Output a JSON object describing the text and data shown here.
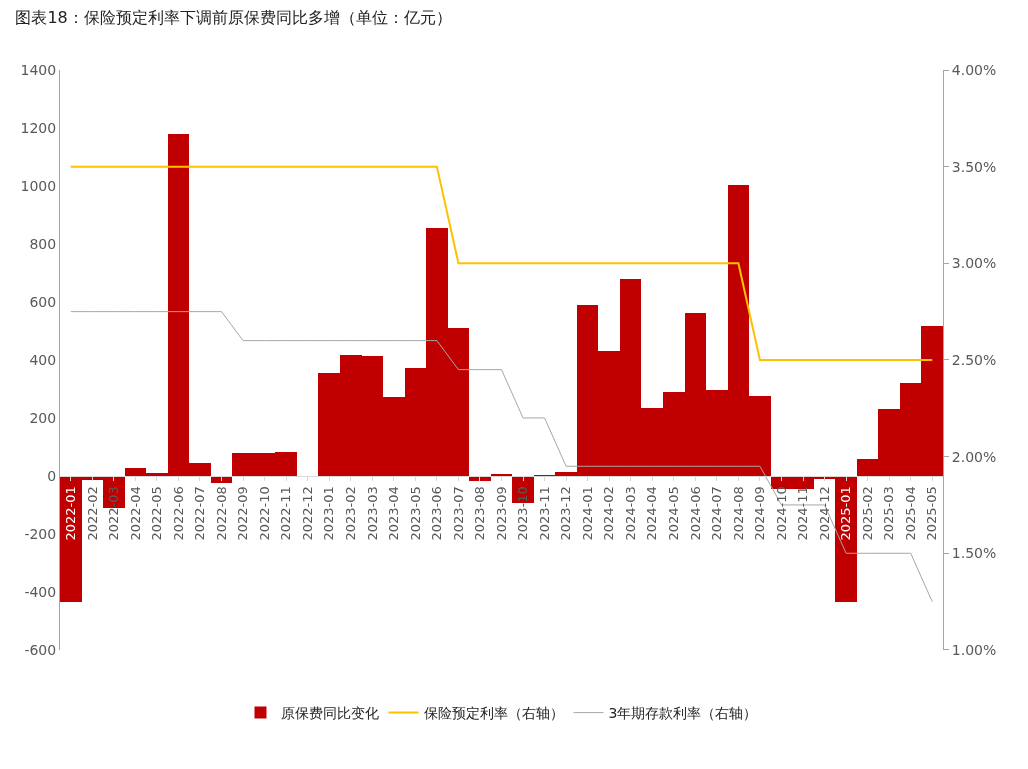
{
  "chart_data": {
    "type": "bar",
    "title": "图表18：保险预定利率下调前原保费同比多增（单位：亿元）",
    "categories": [
      "2022-01",
      "2022-02",
      "2022-03",
      "2022-04",
      "2022-05",
      "2022-06",
      "2022-07",
      "2022-08",
      "2022-09",
      "2022-10",
      "2022-11",
      "2022-12",
      "2023-01",
      "2023-02",
      "2023-03",
      "2023-04",
      "2023-05",
      "2023-06",
      "2023-07",
      "2023-08",
      "2023-09",
      "2023-10",
      "2023-11",
      "2023-12",
      "2024-01",
      "2024-02",
      "2024-03",
      "2024-04",
      "2024-05",
      "2024-06",
      "2024-07",
      "2024-08",
      "2024-09",
      "2024-10",
      "2024-11",
      "2024-12",
      "2025-01",
      "2025-02",
      "2025-03",
      "2025-04",
      "2025-05"
    ],
    "series": [
      {
        "name": "原保费同比变化",
        "color": "#c00000",
        "values": [
          -435,
          -15,
          -110,
          28,
          10,
          1180,
          45,
          -25,
          80,
          78,
          82,
          0,
          356,
          418,
          413,
          273,
          373,
          855,
          510,
          -18,
          5,
          -95,
          2,
          15,
          588,
          430,
          680,
          233,
          290,
          562,
          297,
          1003,
          277,
          -45,
          -45,
          -12,
          -435,
          60,
          230,
          320,
          518
        ]
      },
      {
        "name": "保险预定利率（右轴）",
        "type": "line",
        "axis": "y2",
        "color": "#ffc000",
        "values": [
          3.5,
          3.5,
          3.5,
          3.5,
          3.5,
          3.5,
          3.5,
          3.5,
          3.5,
          3.5,
          3.5,
          3.5,
          3.5,
          3.5,
          3.5,
          3.5,
          3.5,
          3.5,
          3.0,
          3.0,
          3.0,
          3.0,
          3.0,
          3.0,
          3.0,
          3.0,
          3.0,
          3.0,
          3.0,
          3.0,
          3.0,
          3.0,
          2.5,
          2.5,
          2.5,
          2.5,
          2.5,
          2.5,
          2.5,
          2.5,
          2.5
        ]
      },
      {
        "name": "3年期存款利率（右轴）",
        "type": "line",
        "axis": "y2",
        "color": "#a6a6a6",
        "values": [
          2.75,
          2.75,
          2.75,
          2.75,
          2.75,
          2.75,
          2.75,
          2.75,
          2.6,
          2.6,
          2.6,
          2.6,
          2.6,
          2.6,
          2.6,
          2.6,
          2.6,
          2.6,
          2.45,
          2.45,
          2.45,
          2.2,
          2.2,
          1.95,
          1.95,
          1.95,
          1.95,
          1.95,
          1.95,
          1.95,
          1.95,
          1.95,
          1.95,
          1.75,
          1.75,
          1.75,
          1.5,
          1.5,
          1.5,
          1.5,
          1.25
        ]
      }
    ],
    "ylim": [
      -600,
      1400
    ],
    "yticks": [
      -600,
      -400,
      -200,
      0,
      200,
      400,
      600,
      800,
      1000,
      1200,
      1400
    ],
    "y2lim": [
      1.0,
      4.0
    ],
    "y2ticks": [
      {
        "value": 1.0,
        "label": "1.00%"
      },
      {
        "value": 1.5,
        "label": "1.50%"
      },
      {
        "value": 2.0,
        "label": "2.00%"
      },
      {
        "value": 2.5,
        "label": "2.50%"
      },
      {
        "value": 3.0,
        "label": "3.00%"
      },
      {
        "value": 3.5,
        "label": "3.50%"
      },
      {
        "value": 4.0,
        "label": "4.00%"
      }
    ],
    "legend": "bottom"
  }
}
